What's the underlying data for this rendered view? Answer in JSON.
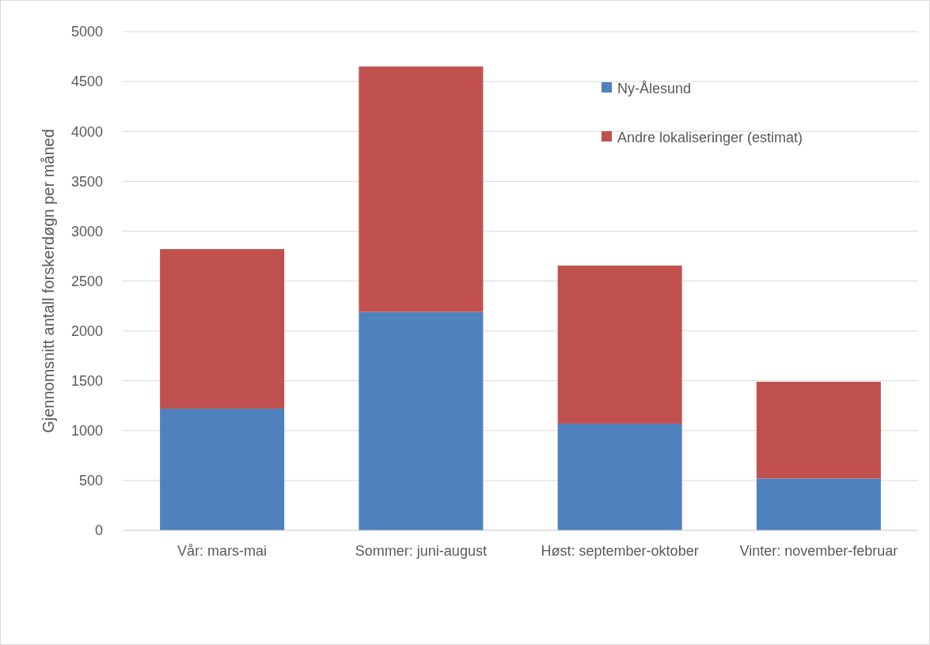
{
  "chart_data": {
    "type": "bar",
    "stacked": true,
    "ylabel": "Gjennomsnitt antall forskerdøgn per måned",
    "categories": [
      "Vår: mars-mai",
      "Sommer: juni-august",
      "Høst: september-oktober",
      "Vinter: november-februar"
    ],
    "series": [
      {
        "name": "Ny-Ålesund",
        "color": "#4f81bd",
        "values": [
          1220,
          2190,
          1070,
          520
        ]
      },
      {
        "name": "Andre lokaliseringer (estimat)",
        "color": "#c0504d",
        "values": [
          1600,
          2460,
          1585,
          970
        ]
      }
    ],
    "ylim": [
      0,
      5000
    ],
    "yticks": [
      0,
      500,
      1000,
      1500,
      2000,
      2500,
      3000,
      3500,
      4000,
      4500,
      5000
    ],
    "grid": "y",
    "legend": "top right"
  }
}
